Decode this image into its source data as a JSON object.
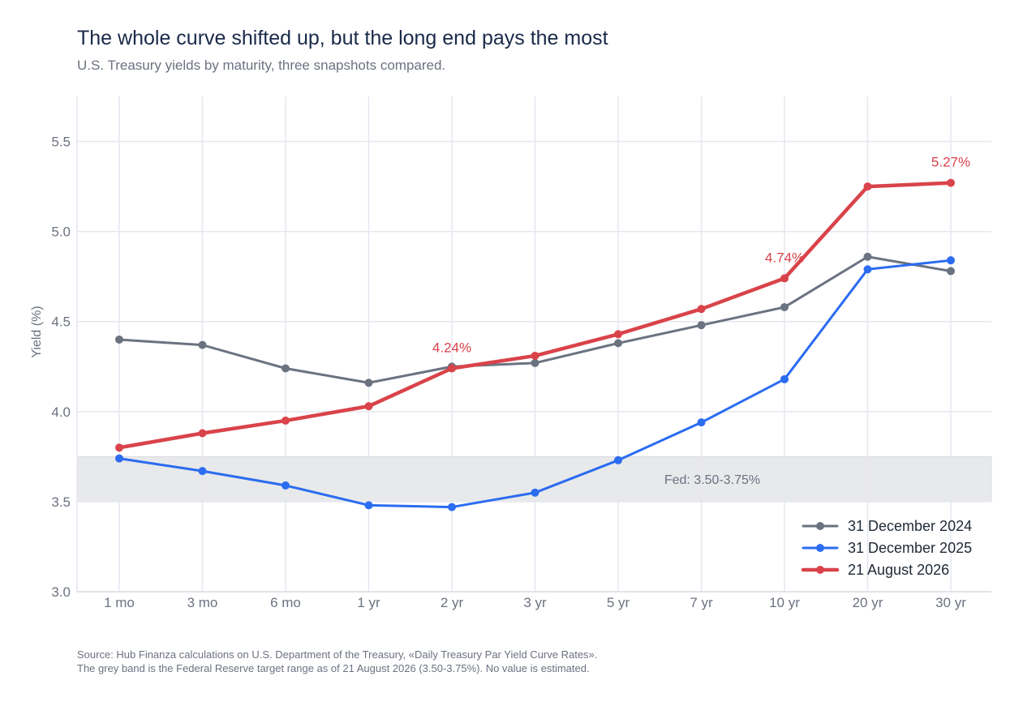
{
  "header": {
    "title": "The whole curve shifted up, but the long end pays the most",
    "subtitle": "U.S. Treasury yields by maturity, three snapshots compared."
  },
  "footer": {
    "source": "Source: Hub Finanza calculations on U.S. Department of the Treasury, «Daily Treasury Par Yield Curve Rates».",
    "note": "The grey band is the Federal Reserve target range as of 21 August 2026 (3.50-3.75%). No value is estimated."
  },
  "chart_data": {
    "type": "line",
    "title": "The whole curve shifted up, but the long end pays the most",
    "subtitle": "U.S. Treasury yields by maturity, three snapshots compared.",
    "xlabel": "",
    "ylabel": "Yield (%)",
    "categories": [
      "1 mo",
      "3 mo",
      "6 mo",
      "1 yr",
      "2 yr",
      "3 yr",
      "5 yr",
      "7 yr",
      "10 yr",
      "20 yr",
      "30 yr"
    ],
    "ylim": [
      3.0,
      5.75
    ],
    "yticks": [
      3.0,
      3.5,
      4.0,
      4.5,
      5.0,
      5.5
    ],
    "ytick_labels": [
      "3.0",
      "3.5",
      "4.0",
      "4.5",
      "5.0",
      "5.5"
    ],
    "grid": true,
    "legend_position": "bottom-right",
    "series": [
      {
        "name": "31 December 2024",
        "color": "#6b7280",
        "values": [
          4.4,
          4.37,
          4.24,
          4.16,
          4.25,
          4.27,
          4.38,
          4.48,
          4.58,
          4.86,
          4.78
        ]
      },
      {
        "name": "31 December 2025",
        "color": "#2b6cf0",
        "values": [
          3.74,
          3.67,
          3.59,
          3.48,
          3.47,
          3.55,
          3.73,
          3.94,
          4.18,
          4.79,
          4.84
        ]
      },
      {
        "name": "21 August 2026",
        "color": "#d9434a",
        "values": [
          3.8,
          3.88,
          3.95,
          4.03,
          4.24,
          4.31,
          4.43,
          4.57,
          4.74,
          5.25,
          5.27
        ]
      }
    ],
    "band": {
      "from": 3.5,
      "to": 3.75,
      "label": "Fed: 3.50-3.75%",
      "color": "#e8e9eb"
    },
    "annotations": [
      {
        "series": 2,
        "category": "2 yr",
        "text": "4.24%"
      },
      {
        "series": 2,
        "category": "10 yr",
        "text": "4.74%"
      },
      {
        "series": 2,
        "category": "30 yr",
        "text": "5.27%"
      }
    ]
  }
}
